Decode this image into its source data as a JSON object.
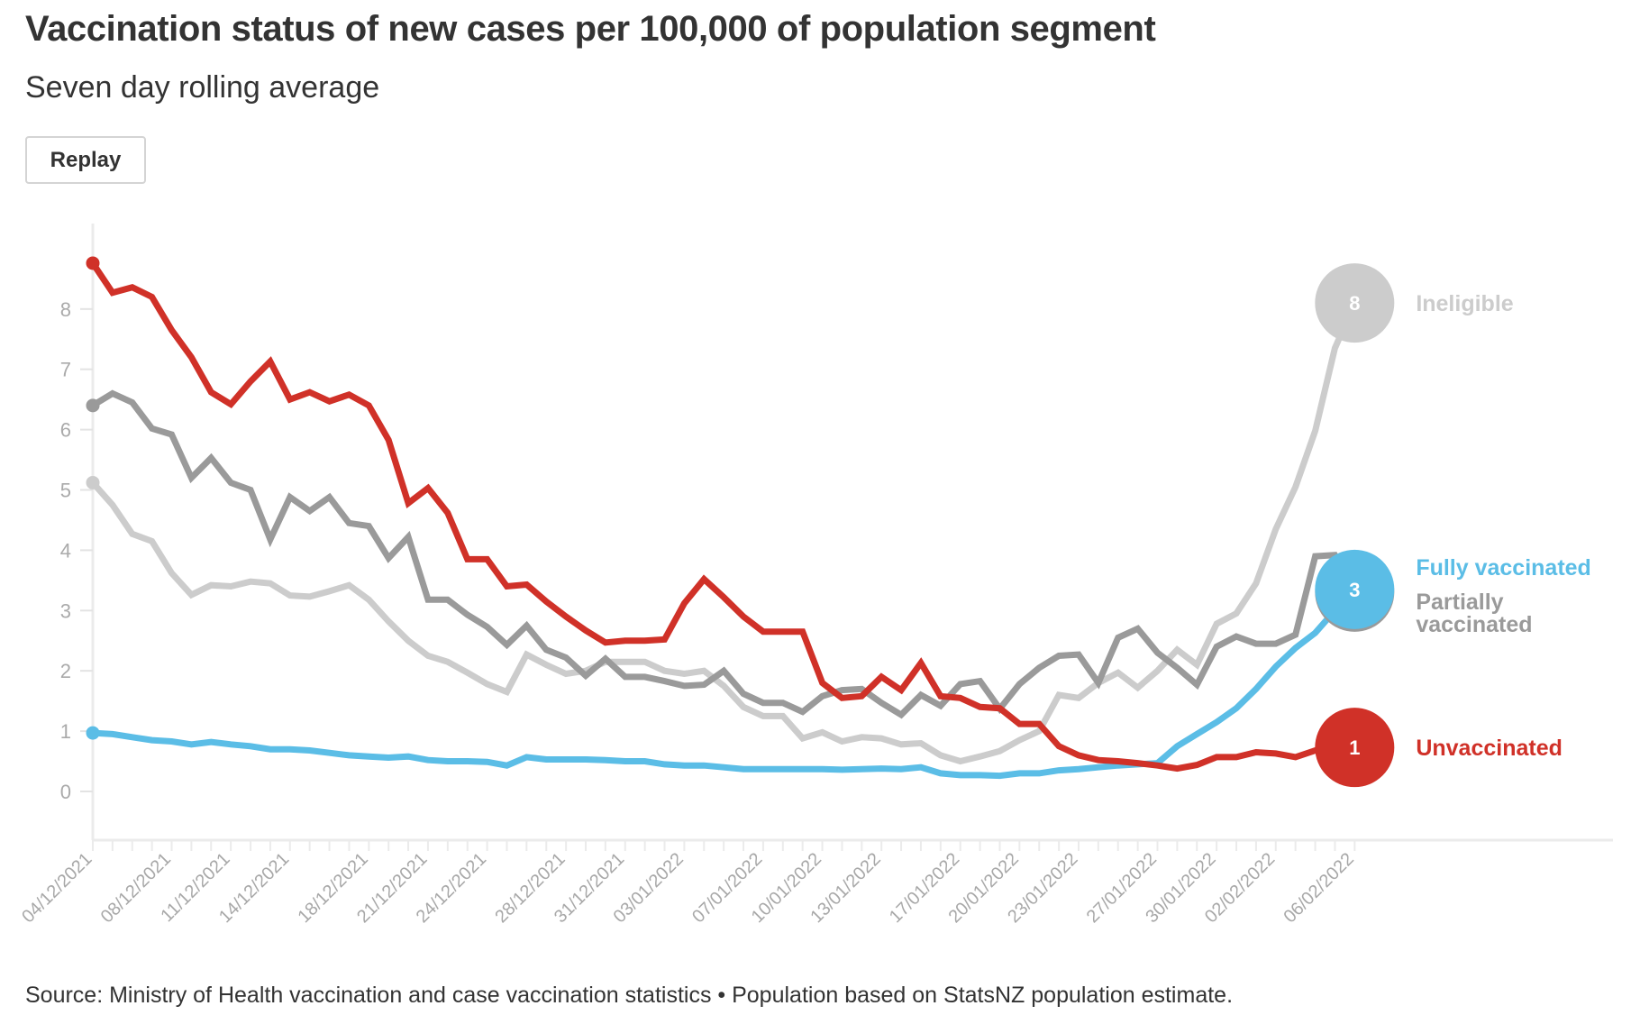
{
  "header": {
    "title": "Vaccination status of new cases per 100,000 of population segment",
    "subtitle": "Seven day rolling average",
    "replay_label": "Replay"
  },
  "footer": {
    "source": "Source: Ministry of Health vaccination and case vaccination statistics • Population based on StatsNZ population estimate."
  },
  "chart_data": {
    "type": "line",
    "title": "Vaccination status of new cases per 100,000 of population segment",
    "subtitle": "Seven day rolling average",
    "xlabel": "",
    "ylabel": "",
    "ylim": [
      -0.7,
      9.2
    ],
    "yticks": [
      0,
      1,
      2,
      3,
      4,
      5,
      6,
      7,
      8
    ],
    "grid": false,
    "legend": "end-of-line labels (right)",
    "x_start": "04/12/2021",
    "x_end": "06/02/2022",
    "x_tick_labels": [
      {
        "index": 0,
        "label": "04/12/2021"
      },
      {
        "index": 4,
        "label": "08/12/2021"
      },
      {
        "index": 7,
        "label": "11/12/2021"
      },
      {
        "index": 10,
        "label": "14/12/2021"
      },
      {
        "index": 14,
        "label": "18/12/2021"
      },
      {
        "index": 17,
        "label": "21/12/2021"
      },
      {
        "index": 20,
        "label": "24/12/2021"
      },
      {
        "index": 24,
        "label": "28/12/2021"
      },
      {
        "index": 27,
        "label": "31/12/2021"
      },
      {
        "index": 30,
        "label": "03/01/2022"
      },
      {
        "index": 34,
        "label": "07/01/2022"
      },
      {
        "index": 37,
        "label": "10/01/2022"
      },
      {
        "index": 40,
        "label": "13/01/2022"
      },
      {
        "index": 44,
        "label": "17/01/2022"
      },
      {
        "index": 47,
        "label": "20/01/2022"
      },
      {
        "index": 50,
        "label": "23/01/2022"
      },
      {
        "index": 54,
        "label": "27/01/2022"
      },
      {
        "index": 57,
        "label": "30/01/2022"
      },
      {
        "index": 60,
        "label": "02/02/2022"
      },
      {
        "index": 64,
        "label": "06/02/2022"
      }
    ],
    "series": [
      {
        "name": "Ineligible",
        "end_label": "Ineligible",
        "end_value_label": "8",
        "color": "#cccccc",
        "values": [
          5.12,
          4.75,
          4.27,
          4.15,
          3.62,
          3.26,
          3.42,
          3.4,
          3.48,
          3.45,
          3.25,
          3.23,
          3.32,
          3.42,
          3.18,
          2.82,
          2.5,
          2.25,
          2.15,
          1.97,
          1.78,
          1.65,
          2.27,
          2.1,
          1.95,
          2.0,
          2.15,
          2.15,
          2.15,
          2.0,
          1.95,
          2.0,
          1.75,
          1.4,
          1.25,
          1.25,
          0.88,
          0.98,
          0.83,
          0.9,
          0.88,
          0.78,
          0.8,
          0.6,
          0.5,
          0.58,
          0.67,
          0.85,
          1.0,
          1.6,
          1.55,
          1.8,
          1.97,
          1.72,
          2.0,
          2.35,
          2.1,
          2.78,
          2.95,
          3.45,
          4.35,
          5.05,
          5.98,
          7.35,
          8.1
        ]
      },
      {
        "name": "Fully vaccinated",
        "end_label": "Fully vaccinated",
        "end_value_label": "3",
        "color": "#5bbde6",
        "values": [
          0.97,
          0.95,
          0.9,
          0.85,
          0.83,
          0.78,
          0.82,
          0.78,
          0.75,
          0.7,
          0.7,
          0.68,
          0.64,
          0.6,
          0.58,
          0.56,
          0.58,
          0.52,
          0.5,
          0.5,
          0.49,
          0.43,
          0.57,
          0.53,
          0.53,
          0.53,
          0.52,
          0.5,
          0.5,
          0.45,
          0.43,
          0.43,
          0.4,
          0.37,
          0.37,
          0.37,
          0.37,
          0.37,
          0.36,
          0.37,
          0.38,
          0.37,
          0.4,
          0.3,
          0.27,
          0.27,
          0.26,
          0.3,
          0.3,
          0.35,
          0.37,
          0.4,
          0.43,
          0.45,
          0.47,
          0.75,
          0.95,
          1.15,
          1.38,
          1.7,
          2.07,
          2.38,
          2.63,
          3.0,
          3.35
        ]
      },
      {
        "name": "Partially vaccinated",
        "end_label": "Partially vaccinated",
        "end_value_label": "",
        "color": "#9a9a9a",
        "values": [
          6.4,
          6.6,
          6.45,
          6.02,
          5.92,
          5.2,
          5.53,
          5.12,
          5.0,
          4.18,
          4.88,
          4.65,
          4.88,
          4.45,
          4.4,
          3.87,
          4.22,
          3.18,
          3.18,
          2.93,
          2.73,
          2.43,
          2.75,
          2.35,
          2.22,
          1.92,
          2.2,
          1.9,
          1.9,
          1.83,
          1.75,
          1.77,
          2.0,
          1.62,
          1.47,
          1.47,
          1.32,
          1.58,
          1.68,
          1.7,
          1.47,
          1.27,
          1.6,
          1.42,
          1.78,
          1.83,
          1.37,
          1.78,
          2.05,
          2.25,
          2.27,
          1.8,
          2.55,
          2.7,
          2.3,
          2.05,
          1.77,
          2.4,
          2.57,
          2.45,
          2.45,
          2.6,
          3.9,
          3.92,
          3.35
        ]
      },
      {
        "name": "Unvaccinated",
        "end_label": "Unvaccinated",
        "end_value_label": "1",
        "color": "#d03128",
        "values": [
          8.76,
          8.27,
          8.36,
          8.2,
          7.65,
          7.2,
          6.62,
          6.42,
          6.8,
          7.13,
          6.5,
          6.62,
          6.47,
          6.58,
          6.4,
          5.83,
          4.78,
          5.03,
          4.62,
          3.85,
          3.85,
          3.4,
          3.43,
          3.15,
          2.9,
          2.67,
          2.47,
          2.5,
          2.5,
          2.52,
          3.12,
          3.52,
          3.22,
          2.9,
          2.65,
          2.65,
          2.65,
          1.8,
          1.55,
          1.58,
          1.9,
          1.68,
          2.13,
          1.58,
          1.55,
          1.4,
          1.38,
          1.12,
          1.12,
          0.75,
          0.6,
          0.52,
          0.5,
          0.47,
          0.43,
          0.38,
          0.44,
          0.57,
          0.57,
          0.65,
          0.63,
          0.57,
          0.68,
          0.72,
          0.73
        ]
      }
    ]
  }
}
